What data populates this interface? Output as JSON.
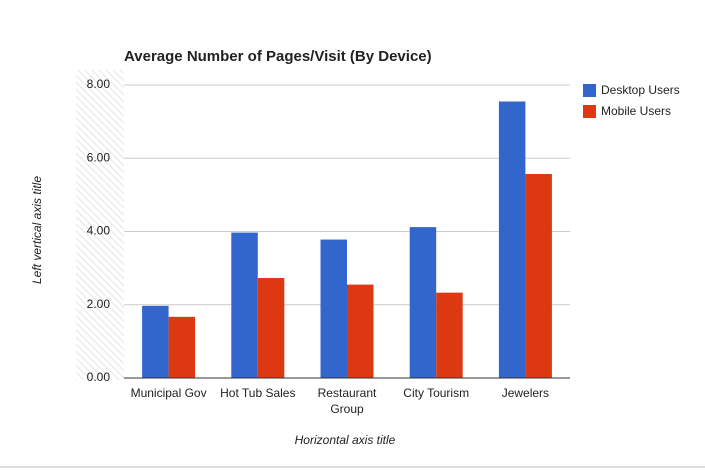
{
  "chart_data": {
    "type": "bar",
    "title": "Average Number of Pages/Visit (By Device)",
    "x_label": "Horizontal axis title",
    "y_label": "Left vertical axis title",
    "categories": [
      "Municipal Gov",
      "Hot Tub Sales",
      "Restaurant Group",
      "City Tourism",
      "Jewelers"
    ],
    "series": [
      {
        "name": "Desktop Users",
        "color": "#3366cc",
        "values": [
          1.97,
          3.97,
          3.78,
          4.12,
          7.55
        ]
      },
      {
        "name": "Mobile Users",
        "color": "#dc3912",
        "values": [
          1.67,
          2.73,
          2.55,
          2.33,
          5.57
        ]
      }
    ],
    "ylim": [
      0,
      8
    ],
    "yticks": [
      {
        "value": 0,
        "label": "0.00"
      },
      {
        "value": 2,
        "label": "2.00"
      },
      {
        "value": 4,
        "label": "4.00"
      },
      {
        "value": 6,
        "label": "6.00"
      },
      {
        "value": 8,
        "label": "8.00"
      }
    ],
    "grid": true,
    "legend": "right"
  }
}
